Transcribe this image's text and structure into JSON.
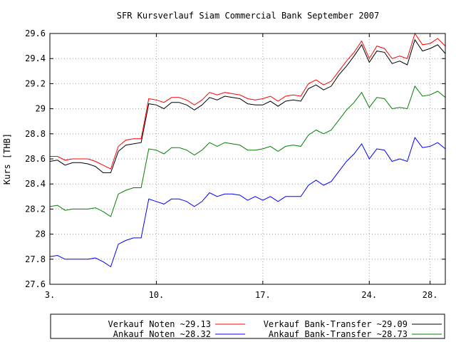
{
  "chart_data": {
    "type": "line",
    "title": "SFR Kursverlauf Siam Commercial Bank September 2007",
    "xlabel": "",
    "ylabel": "Kurs [THB]",
    "ylim": [
      27.6,
      29.6
    ],
    "yticks": [
      "27.6",
      "27.8",
      "28",
      "28.2",
      "28.4",
      "28.6",
      "28.8",
      "29",
      "29.2",
      "29.4",
      "29.6"
    ],
    "xlim": [
      3,
      29
    ],
    "xticks": [
      {
        "value": 3,
        "label": "3."
      },
      {
        "value": 10,
        "label": "10."
      },
      {
        "value": 17,
        "label": "17."
      },
      {
        "value": 24,
        "label": "24."
      },
      {
        "value": 28,
        "label": "28."
      }
    ],
    "grid": true,
    "legend_position": "bottom",
    "x": [
      3,
      3.5,
      4,
      4.5,
      5,
      5.5,
      6,
      6.5,
      7,
      7.5,
      8,
      8.5,
      9,
      9.5,
      10,
      10.5,
      11,
      11.5,
      12,
      12.5,
      13,
      13.5,
      14,
      14.5,
      15,
      15.5,
      16,
      16.5,
      17,
      17.5,
      18,
      18.5,
      19,
      19.5,
      20,
      20.5,
      21,
      21.5,
      22,
      22.5,
      23,
      23.5,
      24,
      24.5,
      25,
      25.5,
      26,
      26.5,
      27,
      27.5,
      28,
      28.5,
      29
    ],
    "series": [
      {
        "name": "Verkauf Noten ~29.13",
        "color": "#ff0000",
        "values": [
          28.62,
          28.62,
          28.59,
          28.6,
          28.6,
          28.6,
          28.58,
          28.55,
          28.52,
          28.7,
          28.75,
          28.76,
          28.76,
          29.08,
          29.07,
          29.05,
          29.09,
          29.09,
          29.07,
          29.03,
          29.07,
          29.13,
          29.11,
          29.13,
          29.12,
          29.11,
          29.08,
          29.07,
          29.08,
          29.1,
          29.06,
          29.1,
          29.11,
          29.1,
          29.2,
          29.23,
          29.19,
          29.22,
          29.3,
          29.38,
          29.45,
          29.54,
          29.4,
          29.5,
          29.48,
          29.4,
          29.42,
          29.4,
          29.6,
          29.51,
          29.52,
          29.56,
          29.5
        ]
      },
      {
        "name": "Verkauf Bank-Transfer ~29.09",
        "color": "#000000",
        "values": [
          28.58,
          28.59,
          28.55,
          28.57,
          28.57,
          28.56,
          28.54,
          28.49,
          28.49,
          28.66,
          28.71,
          28.72,
          28.73,
          29.04,
          29.03,
          29.0,
          29.05,
          29.05,
          29.03,
          28.99,
          29.03,
          29.09,
          29.07,
          29.1,
          29.09,
          29.08,
          29.04,
          29.03,
          29.03,
          29.06,
          29.02,
          29.06,
          29.07,
          29.06,
          29.16,
          29.19,
          29.15,
          29.18,
          29.27,
          29.34,
          29.42,
          29.51,
          29.37,
          29.46,
          29.45,
          29.36,
          29.38,
          29.35,
          29.55,
          29.46,
          29.48,
          29.51,
          29.44
        ]
      },
      {
        "name": "Ankauf Noten ~28.32",
        "color": "#0000ff",
        "values": [
          27.82,
          27.83,
          27.8,
          27.8,
          27.8,
          27.8,
          27.81,
          27.78,
          27.74,
          27.92,
          27.95,
          27.97,
          27.97,
          28.28,
          28.26,
          28.24,
          28.28,
          28.28,
          28.26,
          28.22,
          28.26,
          28.33,
          28.3,
          28.32,
          28.32,
          28.31,
          28.27,
          28.3,
          28.27,
          28.3,
          28.26,
          28.3,
          28.3,
          28.3,
          28.39,
          28.43,
          28.39,
          28.42,
          28.5,
          28.58,
          28.64,
          28.72,
          28.6,
          28.68,
          28.67,
          28.58,
          28.6,
          28.58,
          28.77,
          28.69,
          28.7,
          28.73,
          28.68
        ]
      },
      {
        "name": "Ankauf Bank-Transfer ~28.73",
        "color": "#008000",
        "values": [
          28.22,
          28.23,
          28.19,
          28.2,
          28.2,
          28.2,
          28.21,
          28.18,
          28.14,
          28.32,
          28.35,
          28.37,
          28.37,
          28.68,
          28.67,
          28.64,
          28.69,
          28.69,
          28.67,
          28.63,
          28.67,
          28.73,
          28.7,
          28.73,
          28.72,
          28.71,
          28.67,
          28.67,
          28.68,
          28.7,
          28.66,
          28.7,
          28.71,
          28.7,
          28.79,
          28.83,
          28.8,
          28.83,
          28.91,
          28.99,
          29.05,
          29.13,
          29.01,
          29.09,
          29.08,
          29.0,
          29.01,
          29.0,
          29.18,
          29.1,
          29.11,
          29.14,
          29.09
        ]
      }
    ]
  }
}
